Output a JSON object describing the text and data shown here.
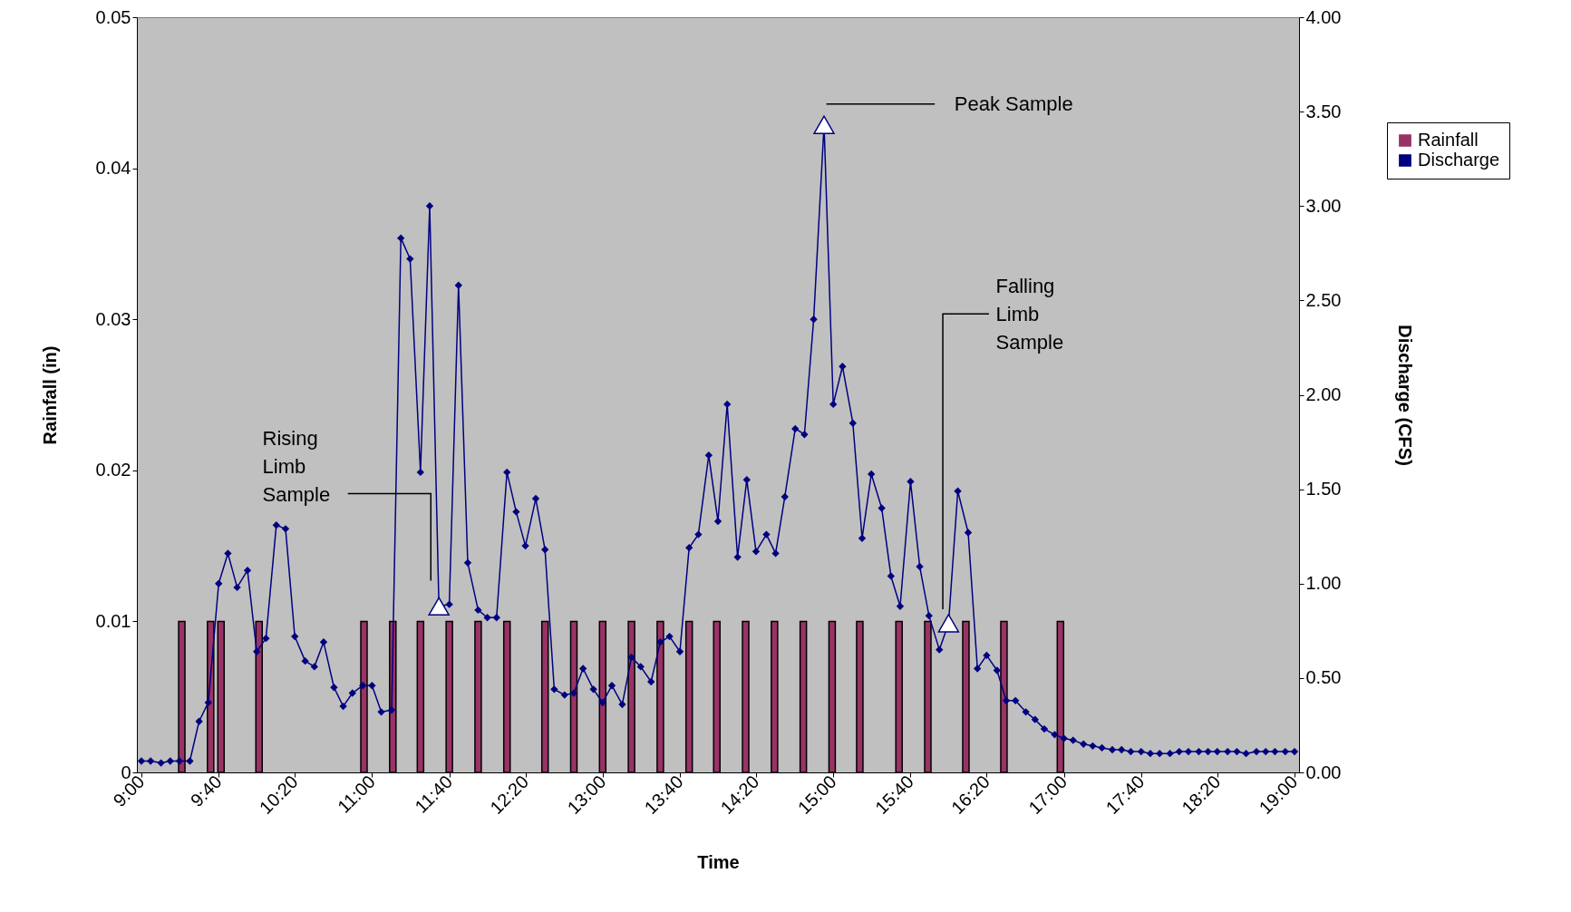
{
  "chart_data": {
    "type": "line",
    "xlabel": "Time",
    "ylabel": "Rainfall (in)",
    "y2label": "Discharge (CFS)",
    "legend": "right",
    "xlim": [
      9,
      19
    ],
    "xticks": [
      {
        "value": 9,
        "label": "9:00"
      },
      {
        "value": 9.67,
        "label": "9:40"
      },
      {
        "value": 10.33,
        "label": "10:20"
      },
      {
        "value": 11,
        "label": "11:00"
      },
      {
        "value": 11.67,
        "label": "11:40"
      },
      {
        "value": 12.33,
        "label": "12:20"
      },
      {
        "value": 13,
        "label": "13:00"
      },
      {
        "value": 13.67,
        "label": "13:40"
      },
      {
        "value": 14.33,
        "label": "14:20"
      },
      {
        "value": 15,
        "label": "15:00"
      },
      {
        "value": 15.67,
        "label": "15:40"
      },
      {
        "value": 16.33,
        "label": "16:20"
      },
      {
        "value": 17,
        "label": "17:00"
      },
      {
        "value": 17.67,
        "label": "17:40"
      },
      {
        "value": 18.33,
        "label": "18:20"
      },
      {
        "value": 19,
        "label": "19:00"
      }
    ],
    "ylim": [
      0,
      0.05
    ],
    "yticks": [
      0,
      0.01,
      0.02,
      0.03,
      0.04,
      0.05
    ],
    "y2lim": [
      0,
      4
    ],
    "y2ticks": [
      {
        "value": 0,
        "label": "0.00"
      },
      {
        "value": 0.5,
        "label": "0.50"
      },
      {
        "value": 1,
        "label": "1.00"
      },
      {
        "value": 1.5,
        "label": "1.50"
      },
      {
        "value": 2,
        "label": "2.00"
      },
      {
        "value": 2.5,
        "label": "2.50"
      },
      {
        "value": 3,
        "label": "3.00"
      },
      {
        "value": 3.5,
        "label": "3.50"
      },
      {
        "value": 4,
        "label": "4.00"
      }
    ],
    "series": [
      {
        "name": "Rainfall",
        "type": "bar",
        "color": "#993366",
        "x": [
          9.35,
          9.6,
          9.69,
          10.02,
          10.93,
          11.18,
          11.42,
          11.67,
          11.92,
          12.17,
          12.5,
          12.75,
          13,
          13.25,
          13.5,
          13.75,
          13.99,
          14.24,
          14.49,
          14.74,
          14.99,
          15.23,
          15.57,
          15.82,
          16.15,
          16.48,
          16.97
        ],
        "values": [
          0.01,
          0.01,
          0.01,
          0.01,
          0.01,
          0.01,
          0.01,
          0.01,
          0.01,
          0.01,
          0.01,
          0.01,
          0.01,
          0.01,
          0.01,
          0.01,
          0.01,
          0.01,
          0.01,
          0.01,
          0.01,
          0.01,
          0.01,
          0.01,
          0.01,
          0.01,
          0.01
        ]
      },
      {
        "name": "Discharge",
        "axis": "y2",
        "color": "#000080",
        "marker": "diamond",
        "x": [
          9,
          9.08,
          9.17,
          9.25,
          9.33,
          9.42,
          9.5,
          9.58,
          9.67,
          9.75,
          9.83,
          9.92,
          10,
          10.08,
          10.17,
          10.25,
          10.33,
          10.42,
          10.5,
          10.58,
          10.67,
          10.75,
          10.83,
          10.92,
          11,
          11.08,
          11.17,
          11.25,
          11.33,
          11.42,
          11.5,
          11.58,
          11.67,
          11.75,
          11.83,
          11.92,
          12,
          12.08,
          12.17,
          12.25,
          12.33,
          12.42,
          12.5,
          12.58,
          12.67,
          12.75,
          12.83,
          12.92,
          13,
          13.08,
          13.17,
          13.25,
          13.33,
          13.42,
          13.5,
          13.58,
          13.67,
          13.75,
          13.83,
          13.92,
          14,
          14.08,
          14.17,
          14.25,
          14.33,
          14.42,
          14.5,
          14.58,
          14.67,
          14.75,
          14.83,
          14.92,
          15,
          15.08,
          15.17,
          15.25,
          15.33,
          15.42,
          15.5,
          15.58,
          15.67,
          15.75,
          15.83,
          15.92,
          16,
          16.08,
          16.17,
          16.25,
          16.33,
          16.42,
          16.5,
          16.58,
          16.67,
          16.75,
          16.83,
          16.92,
          17,
          17.08,
          17.17,
          17.25,
          17.33,
          17.42,
          17.5,
          17.58,
          17.67,
          17.75,
          17.83,
          17.92,
          18,
          18.08,
          18.17,
          18.25,
          18.33,
          18.42,
          18.5,
          18.58,
          18.67,
          18.75,
          18.83,
          18.92,
          19
        ],
        "values": [
          0.06,
          0.06,
          0.05,
          0.06,
          0.06,
          0.06,
          0.27,
          0.37,
          1.0,
          1.16,
          0.98,
          1.07,
          0.64,
          0.71,
          1.31,
          1.29,
          0.72,
          0.59,
          0.56,
          0.69,
          0.45,
          0.35,
          0.42,
          0.46,
          0.46,
          0.32,
          0.33,
          2.83,
          2.72,
          1.59,
          3.0,
          0.88,
          0.89,
          2.58,
          1.11,
          0.86,
          0.82,
          0.82,
          1.59,
          1.38,
          1.2,
          1.45,
          1.18,
          0.44,
          0.41,
          0.42,
          0.55,
          0.44,
          0.37,
          0.46,
          0.36,
          0.61,
          0.56,
          0.48,
          0.69,
          0.72,
          0.64,
          1.19,
          1.26,
          1.68,
          1.33,
          1.95,
          1.14,
          1.55,
          1.17,
          1.26,
          1.16,
          1.46,
          1.82,
          1.79,
          2.4,
          3.43,
          1.95,
          2.15,
          1.85,
          1.24,
          1.58,
          1.4,
          1.04,
          0.88,
          1.54,
          1.09,
          0.83,
          0.65,
          0.79,
          1.49,
          1.27,
          0.55,
          0.62,
          0.54,
          0.38,
          0.38,
          0.32,
          0.28,
          0.23,
          0.2,
          0.18,
          0.17,
          0.15,
          0.14,
          0.13,
          0.12,
          0.12,
          0.11,
          0.11,
          0.1,
          0.1,
          0.1,
          0.11,
          0.11,
          0.11,
          0.11,
          0.11,
          0.11,
          0.11,
          0.1,
          0.11,
          0.11,
          0.11,
          0.11,
          0.11
        ]
      },
      {
        "type": "scatter",
        "axis": "y2",
        "color": "#ffffff",
        "marker": "triangle",
        "x": [
          11.58,
          14.92,
          16.0
        ],
        "values": [
          0.88,
          3.43,
          0.79
        ]
      }
    ],
    "annotations": [
      "Rising Limb Sample",
      "Peak Sample",
      "Falling Limb Sample"
    ]
  }
}
